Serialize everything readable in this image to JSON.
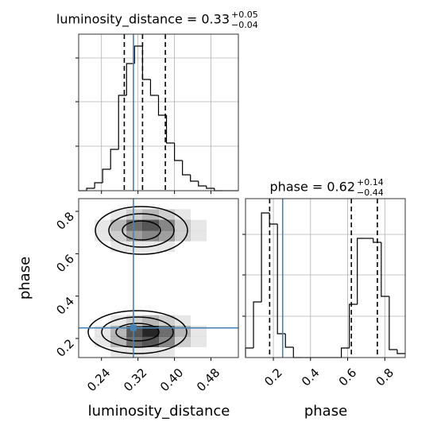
{
  "chart_data": [
    {
      "type": "histogram",
      "title": "luminosity_distance = 0.33",
      "title_upper": "+0.05",
      "title_lower": "−0.04",
      "bins": [
        0.19,
        0.2075,
        0.225,
        0.2425,
        0.26,
        0.2775,
        0.295,
        0.3125,
        0.33,
        0.3475,
        0.365,
        0.3825,
        0.4,
        0.4175,
        0.435,
        0.4525,
        0.47,
        0.4875,
        0.505,
        0.5225,
        0.54
      ],
      "counts": [
        0,
        3,
        10,
        27,
        52,
        120,
        160,
        182,
        140,
        120,
        95,
        60,
        38,
        20,
        12,
        6,
        3,
        0,
        0,
        0
      ],
      "xlim": [
        0.19,
        0.54
      ],
      "xticks": [
        0.24,
        0.32,
        0.4,
        0.48
      ],
      "ylim": [
        0,
        197
      ],
      "yticks": [
        56,
        112,
        167
      ],
      "show_xtick_labels": false,
      "show_ytick_labels": false,
      "quantiles": [
        0.29,
        0.33,
        0.38
      ],
      "truth": 0.31,
      "color": "#000000",
      "truth_color": "#4682b4",
      "grid": true
    },
    {
      "type": "hist2d",
      "xlabel": "luminosity_distance",
      "ylabel": "phase",
      "xlim": [
        0.19,
        0.54
      ],
      "xticks": [
        0.24,
        0.32,
        {
          "value": 0.4,
          "label": "0.40"
        },
        0.48
      ],
      "ylim": [
        0.11,
        0.86
      ],
      "yticks": [
        0.2,
        0.4,
        0.6,
        0.8
      ],
      "show_xtick_labels": true,
      "show_ytick_labels": true,
      "xbins": [
        0.19,
        0.225,
        0.26,
        0.295,
        0.33,
        0.365,
        0.4,
        0.435,
        0.47,
        0.505,
        0.54
      ],
      "ybins": [
        0.11,
        0.16,
        0.21,
        0.26,
        0.31,
        0.36,
        0.41,
        0.46,
        0.51,
        0.56,
        0.61,
        0.66,
        0.71,
        0.76,
        0.81,
        0.86
      ],
      "z": [
        [
          0,
          0,
          1,
          1,
          1,
          1,
          0,
          0,
          0,
          0
        ],
        [
          0,
          1,
          3,
          6,
          7,
          5,
          2,
          1,
          0,
          0
        ],
        [
          0,
          1,
          3,
          7,
          9,
          6,
          3,
          1,
          0,
          0
        ],
        [
          0,
          0,
          1,
          2,
          3,
          2,
          1,
          0,
          0,
          0
        ],
        [
          0,
          0,
          0,
          0,
          0,
          0,
          0,
          0,
          0,
          0
        ],
        [
          0,
          0,
          0,
          0,
          0,
          0,
          0,
          0,
          0,
          0
        ],
        [
          0,
          0,
          0,
          0,
          0,
          0,
          0,
          0,
          0,
          0
        ],
        [
          0,
          0,
          0,
          0,
          0,
          0,
          0,
          0,
          0,
          0
        ],
        [
          0,
          0,
          0,
          0,
          0,
          0,
          0,
          0,
          0,
          0
        ],
        [
          0,
          0,
          0,
          0,
          0,
          0,
          0,
          0,
          0,
          0
        ],
        [
          0,
          0,
          1,
          1,
          1,
          1,
          0,
          0,
          0,
          0
        ],
        [
          0,
          1,
          2,
          4,
          5,
          4,
          2,
          1,
          0,
          0
        ],
        [
          0,
          1,
          3,
          6,
          7,
          5,
          2,
          1,
          0,
          0
        ],
        [
          0,
          0,
          1,
          2,
          3,
          2,
          1,
          0,
          0,
          0
        ],
        [
          0,
          0,
          0,
          0,
          0,
          0,
          0,
          0,
          0,
          0
        ]
      ],
      "truth": [
        0.31,
        0.25
      ],
      "truth_color": "#4682b4",
      "grid": false
    },
    {
      "type": "histogram",
      "title": "phase = 0.62",
      "title_upper": "+0.14",
      "title_lower": "−0.44",
      "xlabel": "phase",
      "bins": [
        0.05,
        0.093,
        0.136,
        0.179,
        0.222,
        0.265,
        0.308,
        0.351,
        0.394,
        0.437,
        0.48,
        0.523,
        0.566,
        0.609,
        0.652,
        0.695,
        0.738,
        0.781,
        0.824,
        0.867,
        0.91
      ],
      "counts": [
        12,
        70,
        182,
        168,
        30,
        13,
        0,
        0,
        0,
        0,
        0,
        0,
        12,
        67,
        150,
        150,
        145,
        77,
        10,
        5
      ],
      "xlim": [
        0.05,
        0.91
      ],
      "xticks": [
        0.2,
        0.4,
        0.6,
        0.8
      ],
      "ylim": [
        0,
        200
      ],
      "yticks": [
        52,
        104,
        155
      ],
      "show_xtick_labels": true,
      "show_ytick_labels": false,
      "quantiles": [
        0.18,
        0.62,
        0.76
      ],
      "truth": 0.25,
      "color": "#000000",
      "truth_color": "#4682b4",
      "grid": true
    }
  ]
}
